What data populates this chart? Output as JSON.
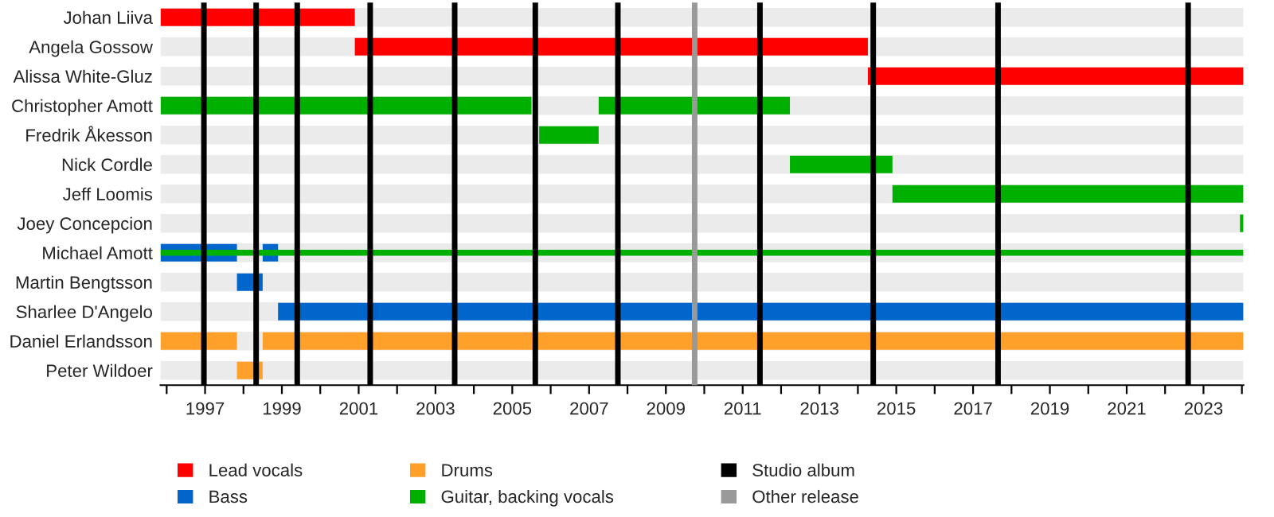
{
  "chart_data": {
    "type": "bar",
    "orientation": "horizontal",
    "categories": [
      "Johan Liiva",
      "Angela Gossow",
      "Alissa White-Gluz",
      "Christopher Amott",
      "Fredrik Åkesson",
      "Nick Cordle",
      "Jeff Loomis",
      "Joey Concepcion",
      "Michael Amott",
      "Martin Bengtsson",
      "Sharlee D'Angelo",
      "Daniel Erlandsson",
      "Peter Wildoer"
    ],
    "series": [
      {
        "name": "Lead vocals",
        "color": "#ff0000",
        "base": [
          1995.84,
          2000.9,
          2014.26,
          null,
          null,
          null,
          null,
          null,
          null,
          null,
          null,
          null,
          null
        ],
        "values": [
          5.06,
          13.36,
          9.78,
          null,
          null,
          null,
          null,
          null,
          null,
          null,
          null,
          null,
          null
        ]
      },
      {
        "name": "Bass",
        "color": "#0066cc",
        "base": [
          null,
          null,
          null,
          null,
          null,
          null,
          null,
          null,
          1995.84,
          1997.83,
          1998.9,
          null,
          null
        ],
        "values": [
          null,
          null,
          null,
          null,
          null,
          null,
          null,
          null,
          1.99,
          0.67,
          25.14,
          null,
          null
        ]
      },
      {
        "color": "#0066cc",
        "base": [
          null,
          null,
          null,
          null,
          null,
          null,
          null,
          null,
          1998.5,
          null,
          null,
          null,
          null
        ],
        "values": [
          null,
          null,
          null,
          null,
          null,
          null,
          null,
          null,
          0.4,
          null,
          null,
          null,
          null
        ]
      },
      {
        "name": "Drums",
        "color": "#ffa02a",
        "base": [
          null,
          null,
          null,
          null,
          null,
          null,
          null,
          null,
          null,
          null,
          null,
          1995.84,
          1997.83
        ],
        "values": [
          null,
          null,
          null,
          null,
          null,
          null,
          null,
          null,
          null,
          null,
          null,
          1.99,
          0.67
        ]
      },
      {
        "color": "#ffa02a",
        "base": [
          null,
          null,
          null,
          null,
          null,
          null,
          null,
          null,
          null,
          null,
          null,
          1998.5,
          null
        ],
        "values": [
          null,
          null,
          null,
          null,
          null,
          null,
          null,
          null,
          null,
          null,
          null,
          25.54,
          null
        ]
      },
      {
        "name": "Guitar, backing vocals",
        "color": "#00b000",
        "base": [
          null,
          null,
          null,
          1995.84,
          2005.7,
          2012.23,
          2014.9,
          2023.95,
          1995.84,
          null,
          null,
          null,
          null
        ],
        "values": [
          null,
          null,
          null,
          9.66,
          1.55,
          2.67,
          9.14,
          0.09,
          28.2,
          null,
          null,
          null,
          null
        ]
      },
      {
        "color": "#00b000",
        "base": [
          null,
          null,
          null,
          2007.25,
          null,
          null,
          null,
          null,
          null,
          null,
          null,
          null,
          null
        ],
        "values": [
          null,
          null,
          null,
          4.98,
          null,
          null,
          null,
          null,
          null,
          null,
          null,
          null,
          null
        ]
      }
    ],
    "ref_lines": [
      {
        "axis": "x",
        "value": 1996.97,
        "label": "Studio album",
        "color": "#000000"
      },
      {
        "axis": "x",
        "value": 1998.33,
        "color": "#000000"
      },
      {
        "axis": "x",
        "value": 1999.4,
        "color": "#000000"
      },
      {
        "axis": "x",
        "value": 2001.3,
        "color": "#000000"
      },
      {
        "axis": "x",
        "value": 2003.5,
        "color": "#000000"
      },
      {
        "axis": "x",
        "value": 2005.6,
        "color": "#000000"
      },
      {
        "axis": "x",
        "value": 2007.75,
        "color": "#000000"
      },
      {
        "axis": "x",
        "value": 2009.75,
        "label": "Other release",
        "color": "#999999"
      },
      {
        "axis": "x",
        "value": 2011.45,
        "color": "#000000"
      },
      {
        "axis": "x",
        "value": 2014.4,
        "color": "#000000"
      },
      {
        "axis": "x",
        "value": 2017.65,
        "color": "#000000"
      },
      {
        "axis": "x",
        "value": 2022.6,
        "color": "#000000"
      }
    ],
    "xlim": [
      1995.84,
      2024.04
    ],
    "xticks": [
      {
        "value": 1996,
        "label": null
      },
      1997,
      {
        "value": 1998,
        "label": null
      },
      1999,
      {
        "value": 2000,
        "label": null
      },
      2001,
      {
        "value": 2002,
        "label": null
      },
      2003,
      {
        "value": 2004,
        "label": null
      },
      2005,
      {
        "value": 2006,
        "label": null
      },
      2007,
      {
        "value": 2008,
        "label": null
      },
      2009,
      {
        "value": 2010,
        "label": null
      },
      2011,
      {
        "value": 2012,
        "label": null
      },
      2013,
      {
        "value": 2014,
        "label": null
      },
      2015,
      {
        "value": 2016,
        "label": null
      },
      2017,
      {
        "value": 2018,
        "label": null
      },
      2019,
      {
        "value": 2020,
        "label": null
      },
      2021,
      {
        "value": 2022,
        "label": null
      },
      2023,
      {
        "value": 2024,
        "label": null
      }
    ],
    "legend": "bottom",
    "grid": false
  }
}
